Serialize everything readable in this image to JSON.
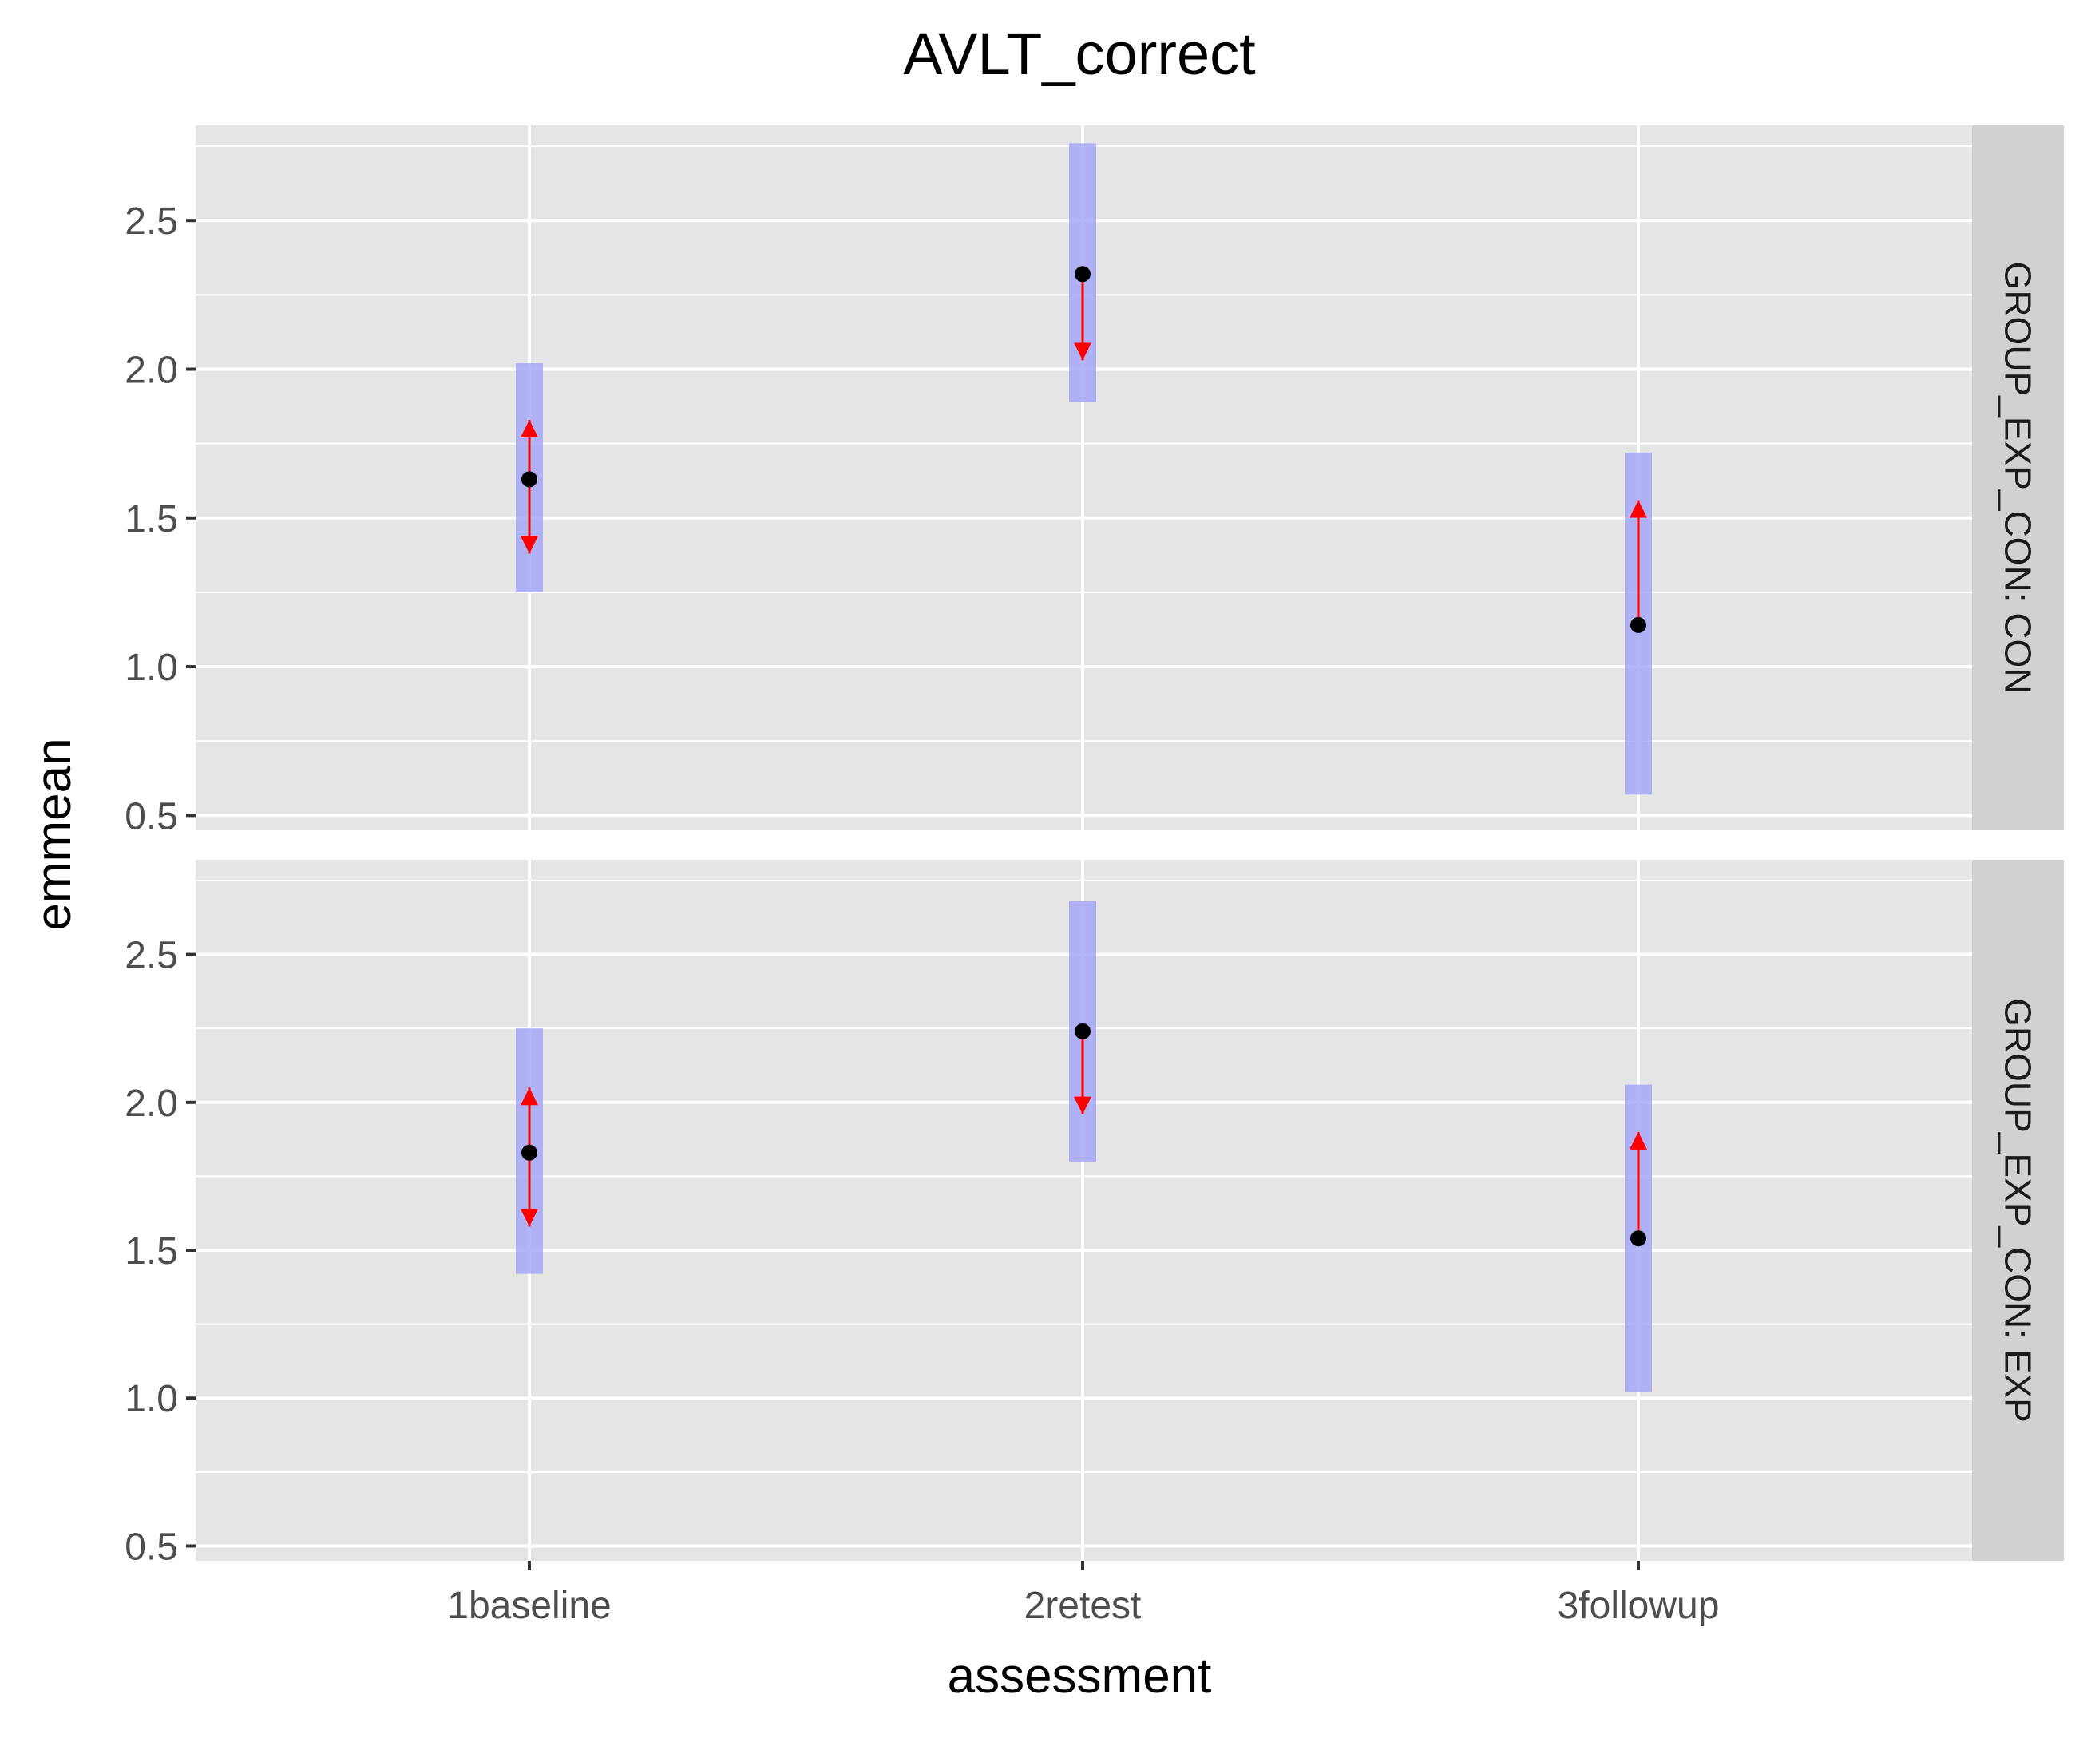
{
  "chart_data": {
    "type": "scatter",
    "title": "AVLT_correct",
    "xlabel": "assessment",
    "ylabel": "emmean",
    "categories": [
      "1baseline",
      "2retest",
      "3followup"
    ],
    "ylim": [
      0.45,
      2.82
    ],
    "yticks": [
      0.5,
      1.0,
      1.5,
      2.0,
      2.5
    ],
    "ytick_labels": [
      "0.5",
      "1.0",
      "1.5",
      "2.0",
      "2.5"
    ],
    "grid": true,
    "facets": [
      {
        "label": "GROUP_EXP_CON: CON",
        "points": [
          {
            "x": "1baseline",
            "emmean": 1.63,
            "lower_CL": 1.25,
            "upper_CL": 2.02,
            "arrow_lower": 1.38,
            "arrow_upper": 1.83
          },
          {
            "x": "2retest",
            "emmean": 2.32,
            "lower_CL": 1.89,
            "upper_CL": 2.76,
            "arrow_lower": 2.03,
            "arrow_upper": null
          },
          {
            "x": "3followup",
            "emmean": 1.14,
            "lower_CL": 0.57,
            "upper_CL": 1.72,
            "arrow_lower": null,
            "arrow_upper": 1.56
          }
        ]
      },
      {
        "label": "GROUP_EXP_CON: EXP",
        "points": [
          {
            "x": "1baseline",
            "emmean": 1.83,
            "lower_CL": 1.42,
            "upper_CL": 2.25,
            "arrow_lower": 1.58,
            "arrow_upper": 2.05
          },
          {
            "x": "2retest",
            "emmean": 2.24,
            "lower_CL": 1.8,
            "upper_CL": 2.68,
            "arrow_lower": 1.96,
            "arrow_upper": null
          },
          {
            "x": "3followup",
            "emmean": 1.54,
            "lower_CL": 1.02,
            "upper_CL": 2.06,
            "arrow_lower": null,
            "arrow_upper": 1.9
          }
        ]
      }
    ],
    "colors": {
      "panel_bg": "#e5e5e5",
      "grid": "#ffffff",
      "strip_bg": "#d1d1d1",
      "ci_band": "#a7a7f7",
      "arrow": "#ff0000",
      "point": "#000000",
      "axis_text": "#4d4d4d",
      "title_text": "#000000"
    }
  }
}
